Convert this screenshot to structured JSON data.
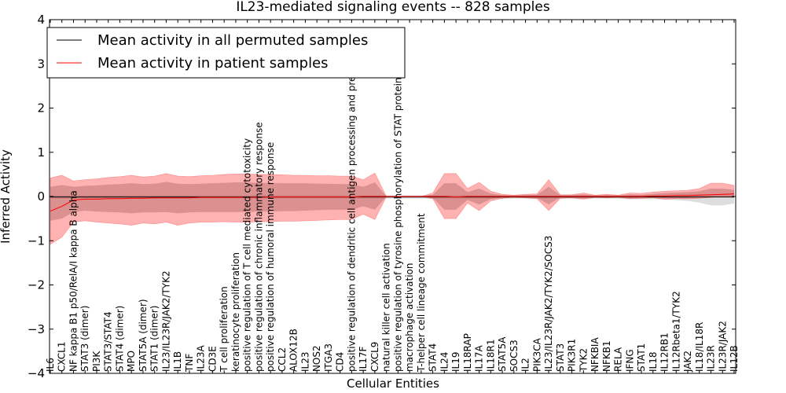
{
  "chart_data": {
    "type": "line",
    "title": "IL23-mediated signaling events -- 828 samples",
    "xlabel": "Cellular Entities",
    "ylabel": "Inferred Activity",
    "ylim": [
      -4,
      4
    ],
    "yticks": [
      -4,
      -3,
      -2,
      -1,
      0,
      1,
      2,
      3,
      4
    ],
    "grid": false,
    "legend_position": "top-left",
    "categories": [
      "IL6",
      "CXCL1",
      "NF kappa B1 p50/RelA/I kappa B alpha",
      "STAT3 (dimer)",
      "PI3K",
      "STAT3/STAT4",
      "STAT4 (dimer)",
      "MPO",
      "STAT5A (dimer)",
      "STAT1 (dimer)",
      "IL23/IL23R/JAK2/TYK2",
      "IL1B",
      "TNF",
      "IL23A",
      "CD3E",
      "T cell proliferation",
      "keratinocyte proliferation",
      "positive regulation of T cell mediated cytotoxicity",
      "positive regulation of chronic inflammatory response",
      "positive regulation of humoral immune response",
      "CCL2",
      "ALOX12B",
      "IL23",
      "NOS2",
      "ITGA3",
      "CD4",
      "positive regulation of dendritic cell antigen processing and presentation",
      "IL17F",
      "CXCL9",
      "natural killer cell activation",
      "positive regulation of tyrosine phosphorylation of STAT protein",
      "macrophage activation",
      "T-helper cell lineage commitment",
      "STAT4",
      "IL24",
      "IL19",
      "IL18RAP",
      "IL17A",
      "IL18R1",
      "STAT5A",
      "SOCS3",
      "IL2",
      "PIK3CA",
      "IL23/IL23R/JAK2/TYK2/SOCS3",
      "STAT3",
      "PIK3R1",
      "TYK2",
      "NFKBIA",
      "NFKB1",
      "RELA",
      "IFNG",
      "STAT1",
      "IL18",
      "IL12RB1",
      "IL12Rbeta1/TYK2",
      "JAK2",
      "IL18/IL18R",
      "IL23R",
      "IL23R/JAK2",
      "IL12B"
    ],
    "series": [
      {
        "name": "Mean activity in all permuted samples",
        "color": "#000000",
        "values": [
          -0.01,
          -0.01,
          -0.01,
          -0.01,
          -0.01,
          -0.01,
          -0.01,
          -0.01,
          -0.01,
          -0.01,
          -0.01,
          -0.01,
          -0.01,
          -0.01,
          -0.01,
          -0.01,
          -0.01,
          -0.01,
          -0.01,
          -0.01,
          -0.01,
          -0.01,
          -0.01,
          -0.01,
          -0.01,
          -0.01,
          -0.01,
          -0.01,
          -0.01,
          -0.01,
          -0.01,
          -0.01,
          -0.01,
          -0.01,
          -0.01,
          -0.01,
          -0.01,
          -0.01,
          -0.01,
          -0.01,
          -0.01,
          -0.01,
          -0.01,
          -0.01,
          -0.01,
          -0.01,
          -0.01,
          -0.01,
          -0.01,
          -0.01,
          -0.01,
          -0.01,
          -0.01,
          -0.01,
          -0.01,
          -0.01,
          -0.01,
          -0.01,
          -0.01,
          -0.01
        ],
        "band_light": {
          "lower": [
            -0.05,
            -0.05,
            -0.05,
            -0.05,
            -0.05,
            -0.05,
            -0.05,
            -0.05,
            -0.05,
            -0.05,
            -0.05,
            -0.05,
            -0.05,
            -0.05,
            -0.05,
            -0.05,
            -0.05,
            -0.05,
            -0.05,
            -0.05,
            -0.05,
            -0.05,
            -0.05,
            -0.05,
            -0.05,
            -0.05,
            -0.05,
            -0.05,
            -0.05,
            -0.05,
            -0.05,
            -0.05,
            -0.05,
            -0.05,
            -0.05,
            -0.05,
            -0.05,
            -0.05,
            -0.05,
            -0.05,
            -0.05,
            -0.05,
            -0.05,
            -0.05,
            -0.05,
            -0.05,
            -0.05,
            -0.05,
            -0.05,
            -0.05,
            -0.06,
            -0.06,
            -0.06,
            -0.07,
            -0.08,
            -0.1,
            -0.14,
            -0.2,
            -0.2,
            -0.16
          ],
          "upper": [
            0.03,
            0.03,
            0.03,
            0.03,
            0.03,
            0.03,
            0.03,
            0.03,
            0.03,
            0.03,
            0.03,
            0.03,
            0.03,
            0.03,
            0.03,
            0.03,
            0.03,
            0.03,
            0.03,
            0.03,
            0.03,
            0.03,
            0.03,
            0.03,
            0.03,
            0.03,
            0.03,
            0.03,
            0.03,
            0.03,
            0.03,
            0.03,
            0.03,
            0.03,
            0.03,
            0.03,
            0.03,
            0.03,
            0.03,
            0.03,
            0.03,
            0.03,
            0.03,
            0.03,
            0.03,
            0.03,
            0.03,
            0.03,
            0.03,
            0.03,
            0.03,
            0.03,
            0.04,
            0.04,
            0.05,
            0.05,
            0.05,
            0.05,
            0.05,
            0.05
          ]
        }
      },
      {
        "name": "Mean activity in patient samples",
        "color": "#ff0000",
        "values": [
          -0.33,
          -0.22,
          -0.08,
          -0.06,
          -0.06,
          -0.05,
          -0.05,
          -0.04,
          -0.04,
          -0.03,
          -0.03,
          -0.03,
          -0.03,
          -0.02,
          -0.02,
          -0.02,
          -0.02,
          -0.02,
          -0.02,
          -0.01,
          -0.01,
          -0.01,
          -0.01,
          -0.01,
          -0.01,
          -0.01,
          -0.01,
          0.0,
          0.0,
          0.0,
          0.0,
          0.0,
          0.0,
          0.0,
          0.0,
          -0.01,
          0.0,
          0.0,
          0.0,
          0.0,
          0.0,
          0.0,
          0.0,
          0.0,
          0.0,
          0.0,
          0.0,
          0.0,
          0.0,
          0.0,
          0.0,
          0.0,
          0.01,
          0.01,
          0.02,
          0.02,
          0.03,
          0.04,
          0.05,
          0.06
        ],
        "band_light": {
          "lower": [
            -1.08,
            -0.92,
            -0.58,
            -0.55,
            -0.58,
            -0.6,
            -0.62,
            -0.65,
            -0.6,
            -0.62,
            -0.58,
            -0.65,
            -0.6,
            -0.58,
            -0.58,
            -0.57,
            -0.58,
            -0.58,
            -0.57,
            -0.57,
            -0.56,
            -0.56,
            -0.55,
            -0.54,
            -0.53,
            -0.52,
            -0.52,
            -0.4,
            -0.52,
            0.0,
            0.0,
            0.0,
            0.0,
            -0.05,
            -0.5,
            -0.5,
            -0.15,
            -0.32,
            -0.1,
            -0.04,
            -0.02,
            -0.03,
            -0.05,
            -0.32,
            -0.04,
            -0.03,
            -0.06,
            -0.02,
            -0.03,
            -0.02,
            -0.05,
            -0.04,
            -0.03,
            -0.06,
            -0.05,
            -0.05,
            -0.04,
            -0.02,
            0.0,
            -0.02
          ],
          "upper": [
            0.42,
            0.48,
            0.35,
            0.38,
            0.4,
            0.43,
            0.45,
            0.48,
            0.44,
            0.46,
            0.52,
            0.46,
            0.45,
            0.47,
            0.48,
            0.5,
            0.51,
            0.51,
            0.5,
            0.5,
            0.49,
            0.48,
            0.48,
            0.47,
            0.47,
            0.46,
            0.46,
            0.38,
            0.53,
            0.0,
            0.0,
            0.0,
            0.0,
            0.08,
            0.52,
            0.52,
            0.18,
            0.32,
            0.12,
            0.05,
            0.03,
            0.05,
            0.06,
            0.38,
            0.04,
            0.04,
            0.08,
            0.03,
            0.05,
            0.03,
            0.08,
            0.07,
            0.1,
            0.12,
            0.13,
            0.14,
            0.18,
            0.3,
            0.3,
            0.25
          ]
        },
        "band_dark": {
          "lower": [
            -0.55,
            -0.5,
            -0.35,
            -0.32,
            -0.34,
            -0.35,
            -0.36,
            -0.38,
            -0.36,
            -0.36,
            -0.35,
            -0.38,
            -0.36,
            -0.35,
            -0.35,
            -0.35,
            -0.35,
            -0.35,
            -0.34,
            -0.34,
            -0.33,
            -0.33,
            -0.32,
            -0.31,
            -0.3,
            -0.3,
            -0.3,
            -0.22,
            -0.3,
            0.0,
            0.0,
            0.0,
            0.0,
            -0.03,
            -0.3,
            -0.3,
            -0.08,
            -0.18,
            -0.06,
            -0.02,
            -0.01,
            -0.02,
            -0.03,
            -0.18,
            -0.02,
            -0.02,
            -0.03,
            -0.01,
            -0.02,
            -0.01,
            -0.03,
            -0.02,
            -0.02,
            -0.03,
            -0.03,
            -0.03,
            -0.02,
            0.0,
            0.01,
            0.0
          ],
          "upper": [
            0.22,
            0.26,
            0.22,
            0.24,
            0.25,
            0.27,
            0.28,
            0.3,
            0.28,
            0.29,
            0.33,
            0.29,
            0.28,
            0.29,
            0.3,
            0.31,
            0.32,
            0.32,
            0.31,
            0.31,
            0.3,
            0.3,
            0.3,
            0.29,
            0.29,
            0.28,
            0.28,
            0.22,
            0.32,
            0.0,
            0.0,
            0.0,
            0.0,
            0.04,
            0.3,
            0.3,
            0.1,
            0.18,
            0.07,
            0.03,
            0.02,
            0.03,
            0.04,
            0.22,
            0.03,
            0.03,
            0.05,
            0.02,
            0.03,
            0.02,
            0.05,
            0.04,
            0.06,
            0.08,
            0.09,
            0.1,
            0.12,
            0.18,
            0.18,
            0.15
          ]
        }
      }
    ]
  }
}
